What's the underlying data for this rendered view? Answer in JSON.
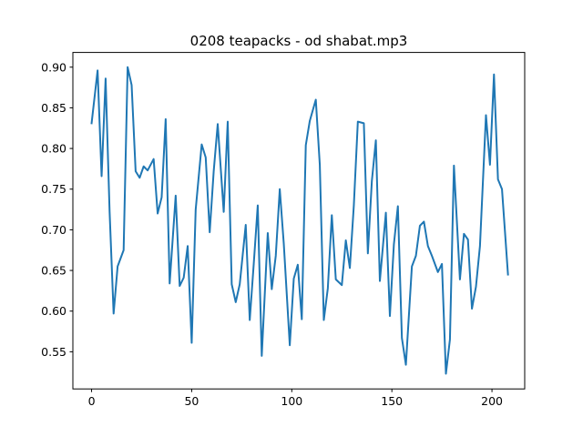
{
  "chart_data": {
    "type": "line",
    "title": "0208 teapacks - od shabat.mp3",
    "xlabel": "",
    "ylabel": "",
    "xlim": [
      -9.35,
      216.35
    ],
    "ylim": [
      0.5043,
      0.9181
    ],
    "xticks": [
      0,
      50,
      100,
      150,
      200
    ],
    "yticks": [
      0.55,
      0.6,
      0.65,
      0.7,
      0.75,
      0.8,
      0.85,
      0.9
    ],
    "ytick_labels": [
      "0.55",
      "0.60",
      "0.65",
      "0.70",
      "0.75",
      "0.80",
      "0.85",
      "0.90"
    ],
    "grid": false,
    "series": [
      {
        "color": "#1f77b4",
        "x": [
          0,
          3,
          5,
          7,
          9,
          11,
          13,
          16,
          18,
          20,
          22,
          24,
          26,
          28,
          31,
          33,
          35,
          37,
          39,
          42,
          44,
          46,
          48,
          50,
          52,
          55,
          57,
          59,
          61,
          63,
          66,
          68,
          70,
          72,
          74,
          77,
          79,
          81,
          83,
          85,
          88,
          90,
          92,
          94,
          96,
          99,
          101,
          103,
          105,
          107,
          109,
          112,
          114,
          116,
          118,
          120,
          122,
          125,
          127,
          129,
          131,
          133,
          136,
          138,
          140,
          142,
          144,
          147,
          149,
          151,
          153,
          155,
          157,
          160,
          162,
          164,
          166,
          168,
          170,
          173,
          175,
          177,
          179,
          181,
          184,
          186,
          188,
          190,
          192,
          194,
          197,
          199,
          201,
          203,
          205,
          208
        ],
        "values": [
          0.831,
          0.896,
          0.766,
          0.886,
          0.722,
          0.597,
          0.655,
          0.675,
          0.9,
          0.878,
          0.772,
          0.764,
          0.778,
          0.773,
          0.787,
          0.72,
          0.74,
          0.836,
          0.634,
          0.742,
          0.631,
          0.641,
          0.68,
          0.561,
          0.725,
          0.805,
          0.789,
          0.697,
          0.772,
          0.83,
          0.722,
          0.833,
          0.633,
          0.611,
          0.633,
          0.706,
          0.589,
          0.658,
          0.73,
          0.545,
          0.696,
          0.627,
          0.668,
          0.75,
          0.683,
          0.558,
          0.64,
          0.657,
          0.59,
          0.804,
          0.834,
          0.86,
          0.78,
          0.589,
          0.628,
          0.718,
          0.639,
          0.632,
          0.687,
          0.653,
          0.73,
          0.833,
          0.831,
          0.671,
          0.76,
          0.81,
          0.637,
          0.721,
          0.594,
          0.682,
          0.729,
          0.567,
          0.534,
          0.655,
          0.668,
          0.705,
          0.71,
          0.68,
          0.668,
          0.648,
          0.658,
          0.523,
          0.565,
          0.779,
          0.639,
          0.695,
          0.688,
          0.603,
          0.63,
          0.68,
          0.841,
          0.78,
          0.891,
          0.762,
          0.75,
          0.645
        ]
      }
    ]
  }
}
